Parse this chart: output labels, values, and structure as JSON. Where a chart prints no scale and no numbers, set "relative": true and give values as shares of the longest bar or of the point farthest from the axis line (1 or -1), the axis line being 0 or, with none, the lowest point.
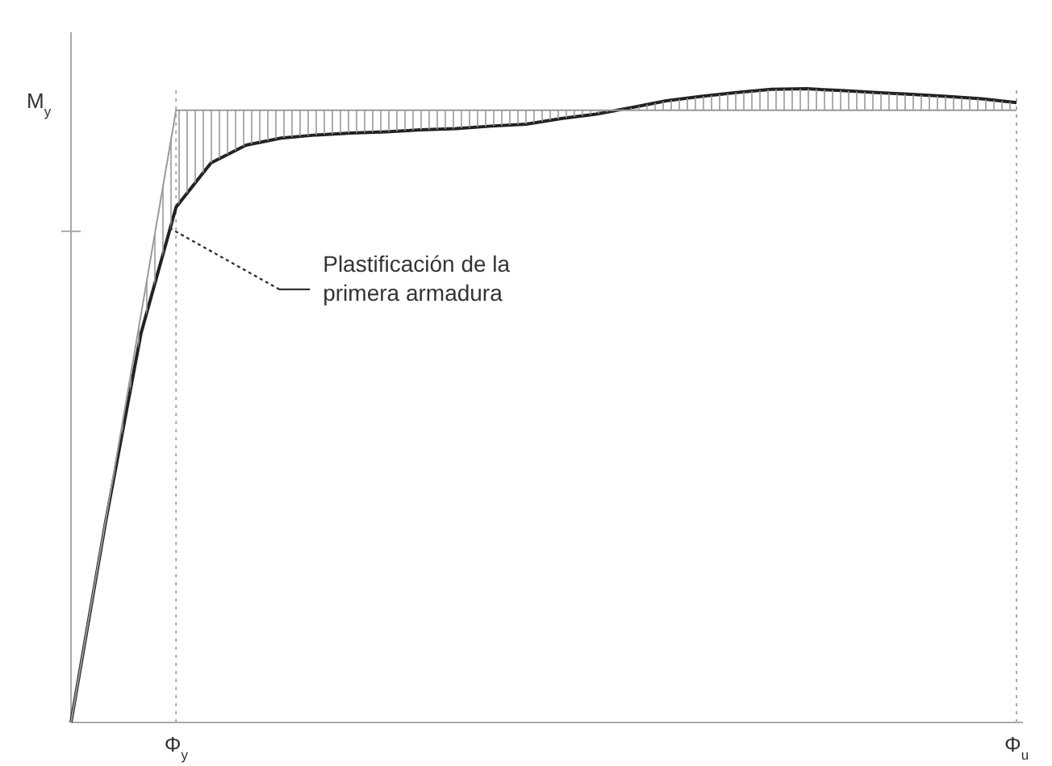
{
  "chart_data": {
    "type": "line",
    "relative": true,
    "ylabel": "M$_{y}$",
    "categories": [
      null,
      null,
      null,
      "Φ$_{y}$",
      null,
      null,
      null,
      null,
      null,
      null,
      null,
      null,
      null,
      null,
      null,
      null,
      null,
      null,
      null,
      null,
      null,
      null,
      null,
      null,
      null,
      null,
      null,
      "Φ$_{u}$"
    ],
    "series": [
      {
        "color": "#222222",
        "values": [
          0,
          0.32,
          0.614,
          0.813,
          0.883,
          0.911,
          0.922,
          0.927,
          0.93,
          0.932,
          0.935,
          0.937,
          0.941,
          0.944,
          0.953,
          0.96,
          0.97,
          0.981,
          0.988,
          0.994,
          0.999,
          1,
          0.997,
          0.994,
          0.991,
          0.988,
          0.984,
          0.978
        ]
      },
      {
        "color": "#999999",
        "values": [
          0,
          0.322,
          0.644,
          0.966,
          0.966,
          0.966,
          0.966,
          0.966,
          0.966,
          0.966,
          0.966,
          0.966,
          0.966,
          0.966,
          0.966,
          0.966,
          0.966,
          0.966,
          0.966,
          0.966,
          0.966,
          0.966,
          0.966,
          0.966,
          0.966,
          0.966,
          0.966,
          0.966
        ],
        "lower": [
          0,
          0.32,
          0.614,
          0.813,
          0.883,
          0.911,
          0.922,
          0.927,
          0.93,
          0.932,
          0.935,
          0.937,
          0.941,
          0.944,
          0.953,
          0.96,
          0.97,
          0.981,
          0.988,
          0.994,
          0.999,
          1,
          0.997,
          0.994,
          0.991,
          0.988,
          0.984,
          0.978
        ],
        "upper": [
          0,
          0.322,
          0.644,
          0.966,
          0.966,
          0.966,
          0.966,
          0.966,
          0.966,
          0.966,
          0.966,
          0.966,
          0.966,
          0.966,
          0.966,
          0.966,
          0.966,
          0.966,
          0.966,
          0.966,
          0.966,
          0.966,
          0.966,
          0.966,
          0.966,
          0.966,
          0.966,
          0.966
        ]
      }
    ],
    "ref_lines": [
      {
        "axis": "x",
        "value": "Φ$_{y}$",
        "line_style": "dotted"
      },
      {
        "axis": "x",
        "value": "Φ$_{u}$",
        "line_style": "dotted"
      }
    ],
    "annotations": [
      "Plastificación de la primera armadura"
    ],
    "grid": false
  }
}
